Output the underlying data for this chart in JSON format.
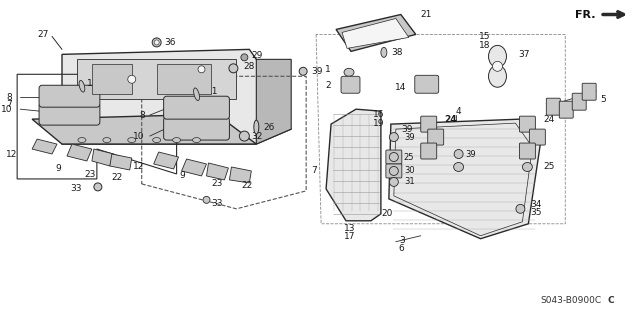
{
  "bg_color": "#ffffff",
  "diagram_code": "S043-B0900C",
  "line_color": "#2a2a2a",
  "gray_fill": "#c8c8c8",
  "light_fill": "#e8e8e8",
  "white_fill": "#f5f5f5"
}
